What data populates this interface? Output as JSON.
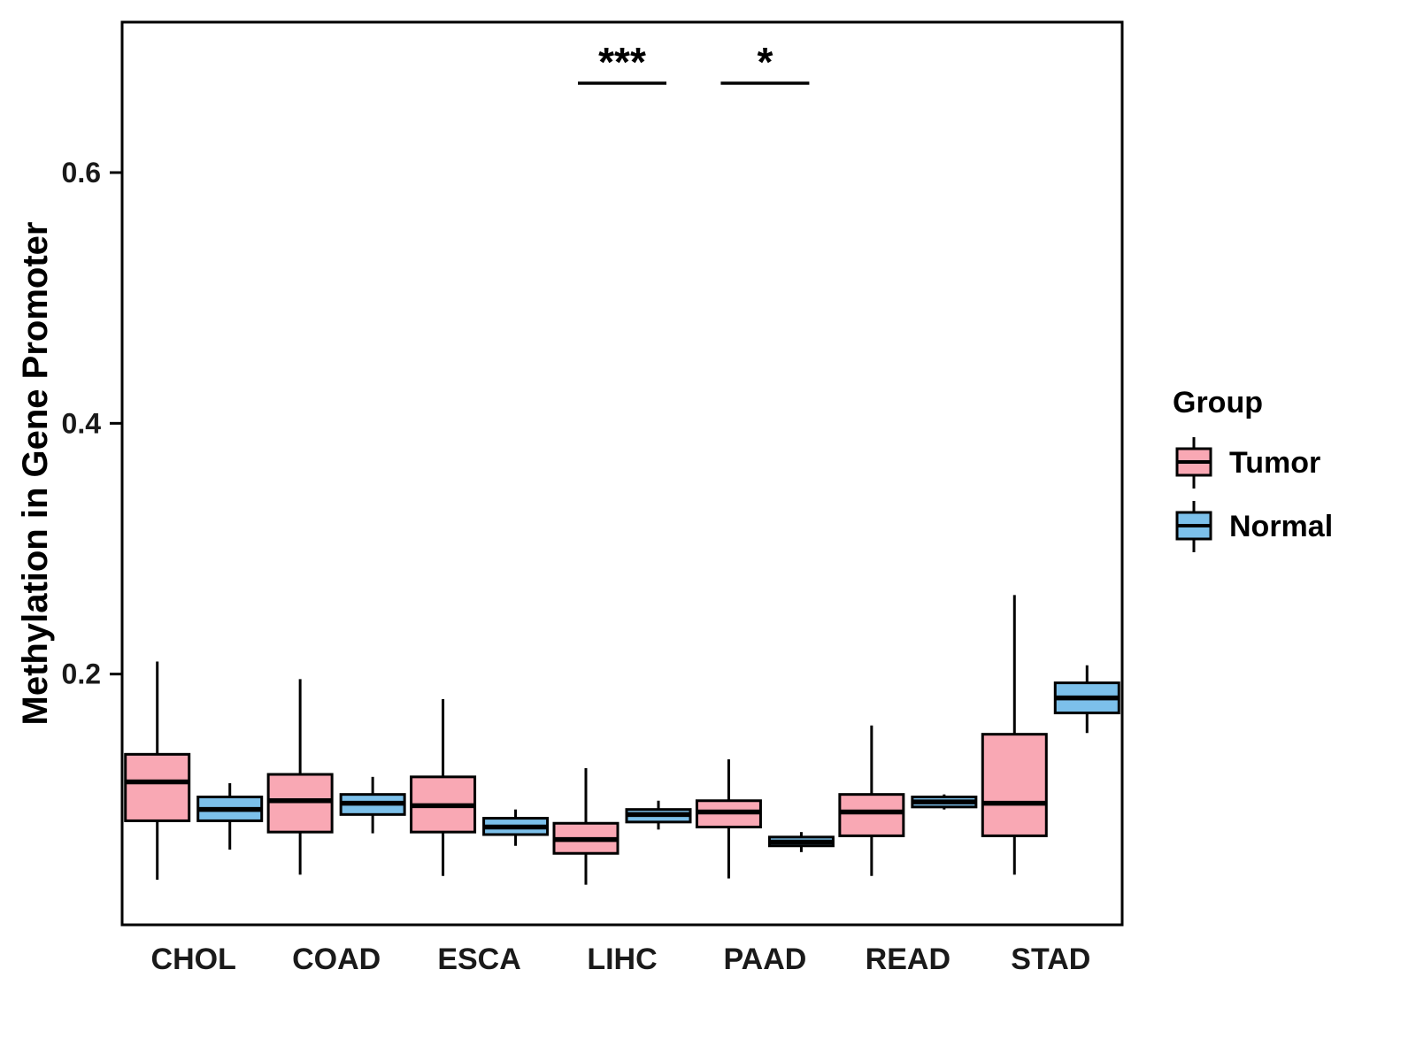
{
  "chart_data": {
    "type": "boxplot",
    "title": "",
    "xlabel": "",
    "ylabel": "Methylation in Gene Promoter",
    "categories": [
      "CHOL",
      "COAD",
      "ESCA",
      "LIHC",
      "PAAD",
      "READ",
      "STAD"
    ],
    "ylim": [
      0,
      0.72
    ],
    "yticks": [
      0.2,
      0.4,
      0.6
    ],
    "grid": false,
    "panel_border_color": "#000000",
    "stat_order": [
      "whisker_low",
      "q1",
      "median",
      "q3",
      "whisker_high"
    ],
    "series": [
      {
        "name": "Tumor",
        "color": "#F9A8B4",
        "stats": [
          [
            0.036,
            0.083,
            0.114,
            0.136,
            0.21
          ],
          [
            0.04,
            0.074,
            0.099,
            0.12,
            0.196
          ],
          [
            0.039,
            0.074,
            0.095,
            0.118,
            0.18
          ],
          [
            0.032,
            0.057,
            0.068,
            0.081,
            0.125
          ],
          [
            0.037,
            0.078,
            0.09,
            0.099,
            0.132
          ],
          [
            0.039,
            0.071,
            0.09,
            0.104,
            0.159
          ],
          [
            0.04,
            0.071,
            0.097,
            0.152,
            0.263
          ]
        ]
      },
      {
        "name": "Normal",
        "color": "#7CC0EA",
        "stats": [
          [
            0.06,
            0.083,
            0.092,
            0.102,
            0.113
          ],
          [
            0.073,
            0.088,
            0.097,
            0.104,
            0.118
          ],
          [
            0.063,
            0.072,
            0.078,
            0.085,
            0.092
          ],
          [
            0.076,
            0.082,
            0.088,
            0.092,
            0.099
          ],
          [
            0.058,
            0.063,
            0.066,
            0.07,
            0.074
          ],
          [
            0.092,
            0.094,
            0.098,
            0.102,
            0.104
          ],
          [
            0.153,
            0.169,
            0.181,
            0.193,
            0.207
          ]
        ]
      }
    ],
    "annotations": [
      {
        "category": "LIHC",
        "label": "***"
      },
      {
        "category": "PAAD",
        "label": "*"
      }
    ],
    "legend": {
      "title": "Group",
      "position": "right",
      "entries": [
        {
          "label": "Tumor",
          "color": "#F9A8B4"
        },
        {
          "label": "Normal",
          "color": "#7CC0EA"
        }
      ]
    }
  }
}
